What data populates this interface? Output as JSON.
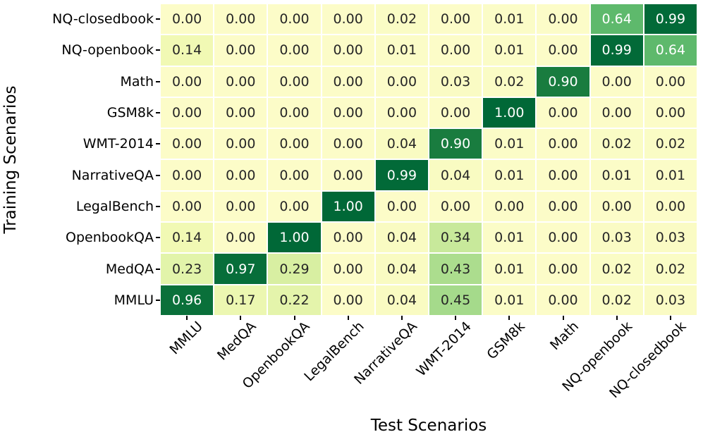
{
  "chart_data": {
    "type": "heatmap",
    "title": "",
    "xlabel": "Test Scenarios",
    "ylabel": "Training Scenarios",
    "colormap": "YlGn",
    "colormap_stops": [
      "#fcfcc8",
      "#f1f9b4",
      "#d9f0a3",
      "#addd8e",
      "#78c679",
      "#41ab5d",
      "#238443",
      "#006837"
    ],
    "grid_line_color": "#ffffff",
    "x_categories": [
      "MMLU",
      "MedQA",
      "OpenbookQA",
      "LegalBench",
      "NarrativeQA",
      "WMT-2014",
      "GSM8k",
      "Math",
      "NQ-openbook",
      "NQ-closedbook"
    ],
    "y_categories": [
      "NQ-closedbook",
      "NQ-openbook",
      "Math",
      "GSM8k",
      "WMT-2014",
      "NarrativeQA",
      "LegalBench",
      "OpenbookQA",
      "MedQA",
      "MMLU"
    ],
    "values": [
      [
        0.0,
        0.0,
        0.0,
        0.0,
        0.02,
        0.0,
        0.01,
        0.0,
        0.64,
        0.99
      ],
      [
        0.14,
        0.0,
        0.0,
        0.0,
        0.01,
        0.0,
        0.01,
        0.0,
        0.99,
        0.64
      ],
      [
        0.0,
        0.0,
        0.0,
        0.0,
        0.0,
        0.03,
        0.02,
        0.9,
        0.0,
        0.0
      ],
      [
        0.0,
        0.0,
        0.0,
        0.0,
        0.0,
        0.0,
        1.0,
        0.0,
        0.0,
        0.0
      ],
      [
        0.0,
        0.0,
        0.0,
        0.0,
        0.04,
        0.9,
        0.01,
        0.0,
        0.02,
        0.02
      ],
      [
        0.0,
        0.0,
        0.0,
        0.0,
        0.99,
        0.04,
        0.01,
        0.0,
        0.01,
        0.01
      ],
      [
        0.0,
        0.0,
        0.0,
        1.0,
        0.0,
        0.0,
        0.0,
        0.0,
        0.0,
        0.0
      ],
      [
        0.14,
        0.0,
        1.0,
        0.0,
        0.04,
        0.34,
        0.01,
        0.0,
        0.03,
        0.03
      ],
      [
        0.23,
        0.97,
        0.29,
        0.0,
        0.04,
        0.43,
        0.01,
        0.0,
        0.02,
        0.02
      ],
      [
        0.96,
        0.17,
        0.22,
        0.0,
        0.04,
        0.45,
        0.01,
        0.0,
        0.02,
        0.03
      ]
    ],
    "annotation": {
      "decimals": 2,
      "dark_text_color": "#262626",
      "light_text_color": "#ffffff",
      "light_text_threshold": 0.55
    },
    "axis_range": {
      "rows": 10,
      "cols": 10
    },
    "legend": "none"
  }
}
